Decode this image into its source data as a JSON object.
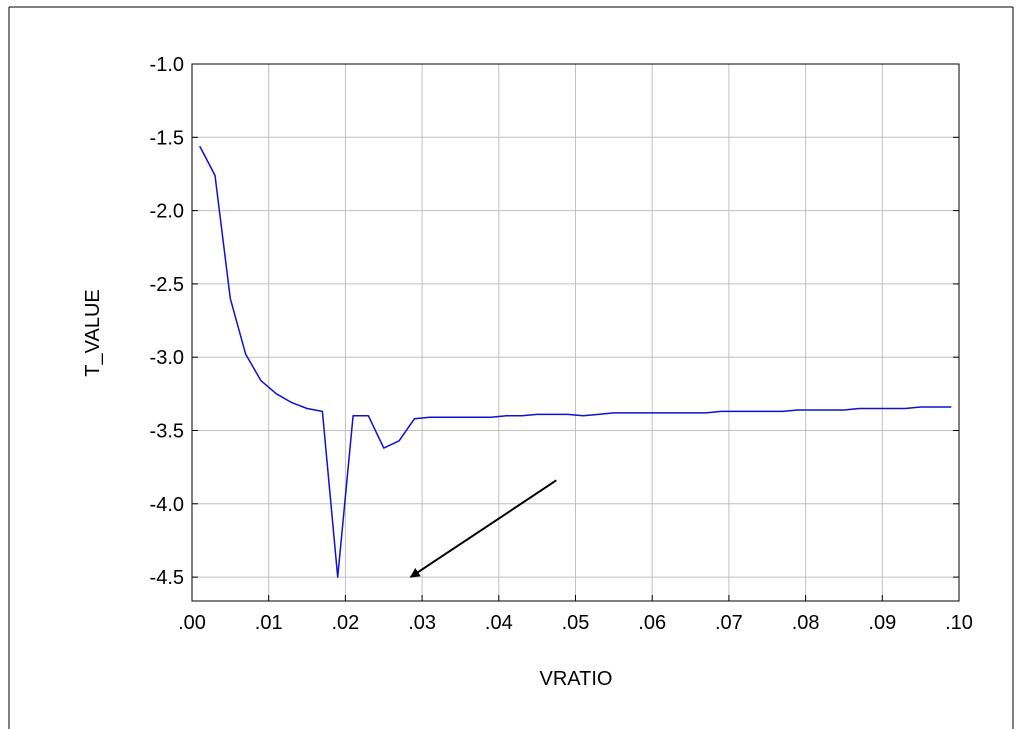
{
  "chart_data": {
    "type": "line",
    "xlabel": "VRATIO",
    "ylabel": "T_VALUE",
    "xlim": [
      0.0,
      0.1
    ],
    "ylim": [
      -4.6,
      -1.0
    ],
    "grid": true,
    "x_ticks": [
      ".00",
      ".01",
      ".02",
      ".03",
      ".04",
      ".05",
      ".06",
      ".07",
      ".08",
      ".09",
      ".10"
    ],
    "y_ticks": [
      "-1.0",
      "-1.5",
      "-2.0",
      "-2.5",
      "-3.0",
      "-3.5",
      "-4.0",
      "-4.5"
    ],
    "colors": {
      "series": "#1010d0",
      "grid": "#c0c0c0",
      "axis": "#000000"
    },
    "series": [
      {
        "x": [
          0.001,
          0.003,
          0.005,
          0.007,
          0.009,
          0.011,
          0.013,
          0.015,
          0.017,
          0.019,
          0.021,
          0.023,
          0.025,
          0.027,
          0.029,
          0.031,
          0.033,
          0.035,
          0.037,
          0.039,
          0.041,
          0.043,
          0.045,
          0.047,
          0.049,
          0.051,
          0.053,
          0.055,
          0.057,
          0.059,
          0.061,
          0.063,
          0.065,
          0.067,
          0.069,
          0.071,
          0.073,
          0.075,
          0.077,
          0.079,
          0.081,
          0.083,
          0.085,
          0.087,
          0.089,
          0.091,
          0.093,
          0.095,
          0.097,
          0.099
        ],
        "values": [
          -1.56,
          -1.76,
          -2.6,
          -2.98,
          -3.16,
          -3.25,
          -3.31,
          -3.35,
          -3.37,
          -4.5,
          -3.4,
          -3.4,
          -3.62,
          -3.57,
          -3.42,
          -3.41,
          -3.41,
          -3.41,
          -3.41,
          -3.41,
          -3.4,
          -3.4,
          -3.39,
          -3.39,
          -3.39,
          -3.4,
          -3.39,
          -3.38,
          -3.38,
          -3.38,
          -3.38,
          -3.38,
          -3.38,
          -3.38,
          -3.37,
          -3.37,
          -3.37,
          -3.37,
          -3.37,
          -3.36,
          -3.36,
          -3.36,
          -3.36,
          -3.35,
          -3.35,
          -3.35,
          -3.35,
          -3.34,
          -3.34,
          -3.34
        ]
      }
    ],
    "annotation": {
      "type": "arrow",
      "from": [
        0.0475,
        -3.84
      ],
      "to": [
        0.0285,
        -4.5
      ]
    }
  }
}
